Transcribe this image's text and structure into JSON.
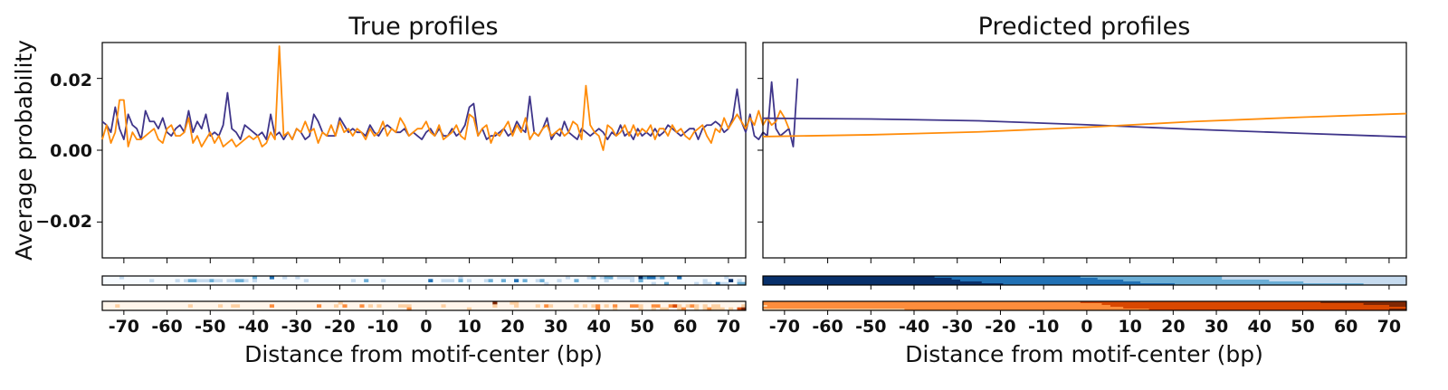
{
  "figure": {
    "ylabel": "Average probability",
    "colors": {
      "series_a": "#3f358a",
      "series_b": "#ff8c0a"
    }
  },
  "chart_data": [
    {
      "type": "line",
      "title": "True profiles",
      "xlabel": "Distance from motif-center (bp)",
      "ylabel": "Average probability",
      "xlim": [
        -75,
        74
      ],
      "ylim": [
        -0.03,
        0.03
      ],
      "xticks": [
        -70,
        -60,
        -50,
        -40,
        -30,
        -20,
        -10,
        0,
        10,
        20,
        30,
        40,
        50,
        60,
        70
      ],
      "yticks": [
        0.02,
        0.0,
        -0.02
      ],
      "ytick_labels": [
        "0.02",
        "0.00",
        "−0.02"
      ],
      "x_start": -75,
      "x_step": 1,
      "series": [
        {
          "color": "#3f358a",
          "values": [
            0.008,
            0.007,
            0.005,
            0.012,
            0.006,
            0.003,
            0.01,
            0.007,
            0.006,
            0.003,
            0.011,
            0.008,
            0.008,
            0.006,
            0.009,
            0.005,
            0.004,
            0.006,
            0.007,
            0.005,
            0.011,
            0.005,
            0.008,
            0.006,
            0.01,
            0.004,
            0.005,
            0.004,
            0.007,
            0.016,
            0.006,
            0.005,
            0.003,
            0.007,
            0.006,
            0.005,
            0.004,
            0.005,
            0.003,
            0.01,
            0.004,
            0.005,
            0.003,
            0.005,
            0.003,
            0.006,
            0.005,
            0.003,
            0.004,
            0.01,
            0.008,
            0.005,
            0.004,
            0.004,
            0.004,
            0.009,
            0.007,
            0.005,
            0.006,
            0.005,
            0.005,
            0.004,
            0.007,
            0.005,
            0.004,
            0.006,
            0.007,
            0.006,
            0.005,
            0.005,
            0.006,
            0.004,
            0.005,
            0.004,
            0.003,
            0.005,
            0.006,
            0.004,
            0.006,
            0.004,
            0.004,
            0.006,
            0.004,
            0.005,
            0.007,
            0.012,
            0.013,
            0.004,
            0.006,
            0.003,
            0.004,
            0.004,
            0.005,
            0.006,
            0.004,
            0.005,
            0.008,
            0.006,
            0.005,
            0.015,
            0.005,
            0.004,
            0.006,
            0.009,
            0.003,
            0.005,
            0.004,
            0.008,
            0.005,
            0.004,
            0.003,
            0.006,
            0.005,
            0.004,
            0.005,
            0.006,
            0.005,
            0.003,
            0.005,
            0.004,
            0.007,
            0.004,
            0.005,
            0.003,
            0.006,
            0.004,
            0.005,
            0.004,
            0.006,
            0.004,
            0.005,
            0.007,
            0.006,
            0.005,
            0.004,
            0.005,
            0.006,
            0.006,
            0.003,
            0.006,
            0.007,
            0.007,
            0.008,
            0.007,
            0.005,
            0.006,
            0.009,
            0.017,
            0.008,
            0.005,
            0.01,
            0.004,
            0.003,
            0.005,
            0.004,
            0.019,
            0.006,
            0.004,
            0.005,
            0.006,
            0.001,
            0.02
          ]
        },
        {
          "color": "#ff8c0a",
          "values": [
            0.003,
            0.007,
            0.002,
            0.005,
            0.014,
            0.014,
            0.001,
            0.005,
            0.003,
            0.003,
            0.004,
            0.005,
            0.006,
            0.003,
            0.002,
            0.006,
            0.007,
            0.004,
            0.004,
            0.005,
            0.009,
            0.002,
            0.004,
            0.001,
            0.003,
            0.005,
            0.002,
            0.004,
            0.001,
            0.002,
            0.003,
            0.001,
            0.002,
            0.003,
            0.004,
            0.003,
            0.004,
            0.001,
            0.002,
            0.005,
            0.003,
            0.029,
            0.004,
            0.005,
            0.003,
            0.006,
            0.005,
            0.008,
            0.005,
            0.006,
            0.002,
            0.005,
            0.004,
            0.007,
            0.004,
            0.008,
            0.005,
            0.006,
            0.004,
            0.006,
            0.005,
            0.003,
            0.006,
            0.004,
            0.005,
            0.008,
            0.004,
            0.006,
            0.005,
            0.009,
            0.007,
            0.004,
            0.005,
            0.006,
            0.006,
            0.008,
            0.005,
            0.004,
            0.007,
            0.003,
            0.004,
            0.005,
            0.007,
            0.004,
            0.003,
            0.01,
            0.009,
            0.004,
            0.006,
            0.007,
            0.002,
            0.005,
            0.004,
            0.006,
            0.008,
            0.004,
            0.007,
            0.005,
            0.009,
            0.003,
            0.005,
            0.004,
            0.006,
            0.007,
            0.004,
            0.005,
            0.006,
            0.004,
            0.005,
            0.008,
            0.007,
            0.003,
            0.018,
            0.007,
            0.005,
            0.004,
            0.0,
            0.007,
            0.006,
            0.004,
            0.005,
            0.007,
            0.004,
            0.007,
            0.004,
            0.006,
            0.005,
            0.007,
            0.003,
            0.006,
            0.006,
            0.004,
            0.007,
            0.005,
            0.006,
            0.004,
            0.003,
            0.005,
            0.006,
            0.007,
            0.004,
            0.002,
            0.006,
            0.005,
            0.009,
            0.006,
            0.008,
            0.01,
            0.008,
            0.006,
            0.009,
            0.007,
            0.011,
            0.007,
            0.009,
            0.007,
            0.008,
            0.011,
            0.009,
            0.006
          ]
        }
      ]
    },
    {
      "type": "line",
      "title": "Predicted profiles",
      "xlabel": "Distance from motif-center (bp)",
      "xlim": [
        -75,
        74
      ],
      "ylim": [
        -0.03,
        0.03
      ],
      "xticks": [
        -70,
        -60,
        -50,
        -40,
        -30,
        -20,
        -10,
        0,
        10,
        20,
        30,
        40,
        50,
        60,
        70
      ],
      "series": [
        {
          "color": "#3f358a",
          "x": [
            -75,
            -50,
            -25,
            0,
            25,
            50,
            74
          ],
          "values": [
            0.0089,
            0.0087,
            0.0082,
            0.0071,
            0.0058,
            0.0047,
            0.0037
          ]
        },
        {
          "color": "#ff8c0a",
          "x": [
            -75,
            -50,
            -25,
            0,
            25,
            50,
            74
          ],
          "values": [
            0.0038,
            0.0043,
            0.0051,
            0.0064,
            0.008,
            0.0092,
            0.0102
          ]
        }
      ]
    },
    {
      "type": "heatmap",
      "panel": "left-blue",
      "colormap": [
        "#f7fbff",
        "#c6dbef",
        "#6baed6",
        "#2171b5",
        "#08306b"
      ],
      "rows": 3,
      "cols": 150,
      "rows_data": [
        {
          "start": -75,
          "values": "000010000000000000000000000000000002000300100100000000000000000000000000000000000001000000000000000000000000100001201220111104233120003000000000010000"
        },
        {
          "start": -75,
          "values": "000000000001000001012211121101122101000000000001000000000010020001000000000030011102010001200200302001200010002000000100000102000000000000001000004010"
        },
        {
          "start": -75,
          "values": "000000000000000000000000000000000000000000000000000000000000000000000000000000000000000000000000000000010000000000000000000000001002000000101103110022"
        }
      ]
    },
    {
      "type": "heatmap",
      "panel": "left-orange",
      "colormap": [
        "#fff5eb",
        "#fdd0a2",
        "#fd8d3c",
        "#d94801",
        "#7f2704"
      ],
      "rows": 3,
      "cols": 150,
      "rows_data": [
        {
          "start": -75,
          "values": "000000000000000000000000000000000000000000000000000000010000000000000000000000000000000000040001100000000000000000000000000000000000000000000000000000"
        },
        {
          "start": -75,
          "values": "000100000000000000001000000100110000000200000000002000102000201010000111000000010000000000010000100001021000001010120102000221002200231012101011000001"
        },
        {
          "start": -75,
          "values": "000000000000000000000000000000000000000000000000000000000000000000000002000000000000010000000000000000000000000000020001000001001011001200101211101034"
        }
      ]
    },
    {
      "type": "heatmap",
      "panel": "right-blue",
      "colormap": [
        "#f7fbff",
        "#c6dbef",
        "#6baed6",
        "#2171b5",
        "#08306b"
      ],
      "rows": 5,
      "cols": 150,
      "rows_data": [
        {
          "start": -75,
          "values": "444444444444444444444444444444444444444433333333333333333333333333333333332222222222222222222222222222222221111111111111111111111111111111111111111111"
        },
        {
          "start": -75,
          "values": "444444444444444444444444444444444444444444443333333333333333333333333333333333222222222222222222222222222221111111111111111111111111111111111111111111"
        },
        {
          "start": -75,
          "values": "444444444444444444444444444444444444444444444433333333333333333333333333333333333333222222222222222222222222222222222211111111111111111111111111111111"
        },
        {
          "start": -75,
          "values": "444444444444444444444444444444444444444444444444444333333333333333333333333333333333333322222222222222222222222222222222222222111111111111111111111111"
        },
        {
          "start": -75,
          "values": "444444444444444444444444444444444444444444444444444444443333333333333333333333333333333333333333222222222222222222222222222222222222222222221111111111"
        }
      ]
    },
    {
      "type": "heatmap",
      "panel": "right-orange",
      "colormap": [
        "#fff5eb",
        "#fdd0a2",
        "#fd8d3c",
        "#d94801",
        "#7f2704"
      ],
      "rows": 5,
      "cols": 150,
      "rows_data": [
        {
          "start": -75,
          "values": "222222222222222222222222222222222222222222222222222222222222222222222222223333333333333333333333333333333333333333333333333333333344444444444444444444"
        },
        {
          "start": -75,
          "values": "222222222222222222222222222222222222222222222222222222222222222222222222222222233333333333333333333333333333333333333333333333333333333333334444444444"
        },
        {
          "start": -75,
          "values": "122222222222222222222222222222222222222222222222222222222222222222222222222222222333333333333333333333333333333333333333333333333333333333333333334444"
        },
        {
          "start": -75,
          "values": "222222222222222222222222222222222222222222222222222222222222222222222222222222222222333333333333333333333333333333333333333333333333333333333333333333"
        },
        {
          "start": -75,
          "values": "111111111111111111111111111111111222222222222222222222222222222222222222222222222222222222333333333333333333333333333333333333333333333333333333334444"
        }
      ]
    }
  ]
}
